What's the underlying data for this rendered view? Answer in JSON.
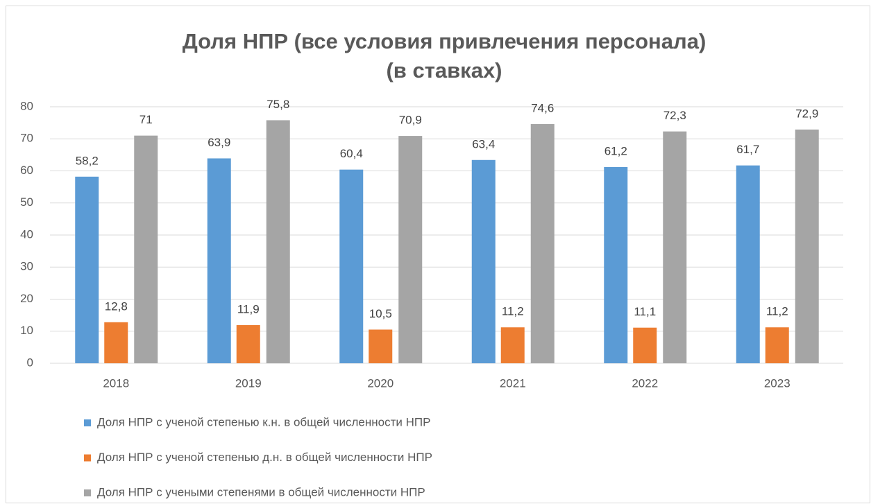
{
  "chart_data": {
    "type": "bar",
    "title": [
      "Доля НПР (все условия привлечения персонала)",
      "(в ставках)"
    ],
    "categories": [
      "2018",
      "2019",
      "2020",
      "2021",
      "2022",
      "2023"
    ],
    "series": [
      {
        "name": "Доля НПР с ученой степенью к.н. в общей численности НПР",
        "color": "#5b9bd5",
        "values": [
          58.2,
          63.9,
          60.4,
          63.4,
          61.2,
          61.7
        ],
        "value_labels": [
          "58,2",
          "63,9",
          "60,4",
          "63,4",
          "61,2",
          "61,7"
        ]
      },
      {
        "name": "Доля НПР с ученой степенью д.н. в общей численности НПР",
        "color": "#ed7d31",
        "values": [
          12.8,
          11.9,
          10.5,
          11.2,
          11.1,
          11.2
        ],
        "value_labels": [
          "12,8",
          "11,9",
          "10,5",
          "11,2",
          "11,1",
          "11,2"
        ]
      },
      {
        "name": "Доля НПР с учеными степенями в общей численности НПР",
        "color": "#a5a5a5",
        "values": [
          71,
          75.8,
          70.9,
          74.6,
          72.3,
          72.9
        ],
        "value_labels": [
          "71",
          "75,8",
          "70,9",
          "74,6",
          "72,3",
          "72,9"
        ]
      }
    ],
    "ylim": [
      0,
      80
    ],
    "yticks": [
      0,
      10,
      20,
      30,
      40,
      50,
      60,
      70,
      80
    ],
    "grid": true,
    "legend": "bottom"
  }
}
